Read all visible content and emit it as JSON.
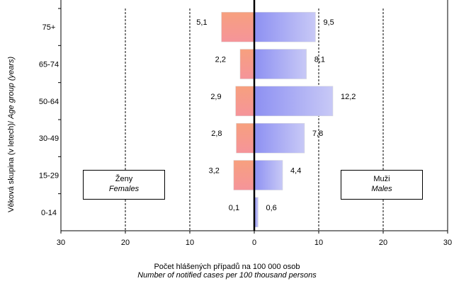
{
  "chart_data": {
    "type": "bar",
    "orientation": "horizontal-population-pyramid",
    "categories": [
      "75+",
      "65-74",
      "50-64",
      "30-49",
      "15-29",
      "0-14"
    ],
    "series": [
      {
        "name": "Ženy / Females",
        "side": "left",
        "values": [
          5.1,
          2.2,
          2.9,
          2.8,
          3.2,
          0.1
        ],
        "labels": [
          "5,1",
          "2,2",
          "2,9",
          "2,8",
          "3,2",
          "0,1"
        ],
        "color": "#f59a8a"
      },
      {
        "name": "Muži / Males",
        "side": "right",
        "values": [
          9.5,
          8.1,
          12.2,
          7.8,
          4.4,
          0.6
        ],
        "labels": [
          "9,5",
          "8,1",
          "12,2",
          "7,8",
          "4,4",
          "0,6"
        ],
        "color": "#9fa3f5"
      }
    ],
    "xlim": [
      -30,
      30
    ],
    "xticks": [
      -30,
      -20,
      -10,
      0,
      10,
      20,
      30
    ],
    "xtick_labels": [
      "30",
      "20",
      "10",
      "0",
      "10",
      "20",
      "30"
    ],
    "xlabel_cs": "Počet hlášených případů na 100 000 osob",
    "xlabel_en": "Number of notified cases per 100 thousand persons",
    "ylabel_cs": "Věková skupina  (v letech)/",
    "ylabel_en": "Age group (years)",
    "grid": "vertical dashed",
    "females_box": {
      "cs": "Ženy",
      "en": "Females"
    },
    "males_box": {
      "cs": "Muži",
      "en": "Males"
    }
  }
}
